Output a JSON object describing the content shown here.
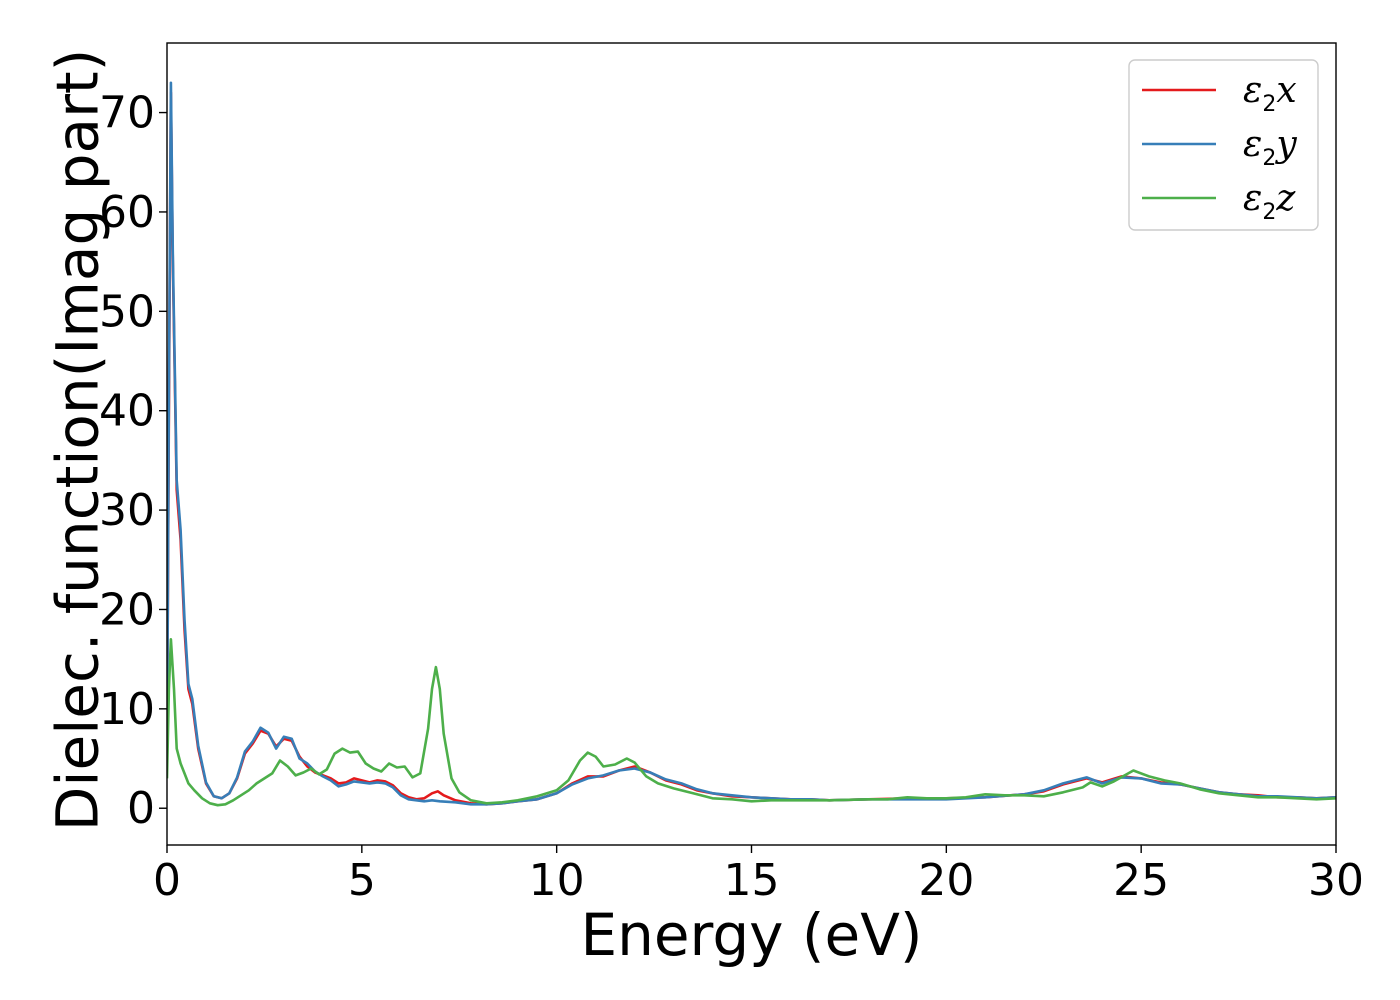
{
  "chart_data": {
    "type": "line",
    "title": "",
    "xlabel": "Energy (eV)",
    "ylabel": "Dielec. function(Imag part)",
    "xlim": [
      0,
      30
    ],
    "ylim": [
      -3.7,
      77
    ],
    "xticks": [
      0,
      5,
      10,
      15,
      20,
      25,
      30
    ],
    "yticks": [
      0,
      10,
      20,
      30,
      40,
      50,
      60,
      70
    ],
    "grid": false,
    "legend_position": "top-right",
    "series": [
      {
        "name": "ε2x",
        "base": "ε",
        "sub": "2",
        "suffix": "x",
        "color": "#e41a1c",
        "points": [
          [
            0.0,
            5
          ],
          [
            0.05,
            40
          ],
          [
            0.1,
            72
          ],
          [
            0.15,
            55
          ],
          [
            0.25,
            32
          ],
          [
            0.35,
            27
          ],
          [
            0.45,
            18
          ],
          [
            0.55,
            12
          ],
          [
            0.65,
            10.5
          ],
          [
            0.8,
            6
          ],
          [
            1.0,
            2.5
          ],
          [
            1.2,
            1.2
          ],
          [
            1.4,
            1.0
          ],
          [
            1.6,
            1.5
          ],
          [
            1.8,
            3.0
          ],
          [
            2.0,
            5.5
          ],
          [
            2.2,
            6.5
          ],
          [
            2.4,
            7.8
          ],
          [
            2.6,
            7.5
          ],
          [
            2.8,
            6.2
          ],
          [
            3.0,
            7.0
          ],
          [
            3.2,
            6.8
          ],
          [
            3.4,
            5.2
          ],
          [
            3.6,
            4.2
          ],
          [
            3.8,
            3.6
          ],
          [
            4.0,
            3.3
          ],
          [
            4.2,
            3.0
          ],
          [
            4.4,
            2.5
          ],
          [
            4.6,
            2.6
          ],
          [
            4.8,
            3.0
          ],
          [
            5.0,
            2.8
          ],
          [
            5.2,
            2.6
          ],
          [
            5.4,
            2.8
          ],
          [
            5.6,
            2.7
          ],
          [
            5.8,
            2.3
          ],
          [
            6.0,
            1.5
          ],
          [
            6.2,
            1.1
          ],
          [
            6.4,
            0.9
          ],
          [
            6.6,
            1.0
          ],
          [
            6.8,
            1.5
          ],
          [
            6.95,
            1.7
          ],
          [
            7.1,
            1.3
          ],
          [
            7.4,
            0.8
          ],
          [
            7.8,
            0.5
          ],
          [
            8.2,
            0.4
          ],
          [
            8.6,
            0.5
          ],
          [
            9.0,
            0.7
          ],
          [
            9.5,
            0.9
          ],
          [
            10.0,
            1.5
          ],
          [
            10.4,
            2.5
          ],
          [
            10.8,
            3.2
          ],
          [
            11.2,
            3.2
          ],
          [
            11.6,
            3.8
          ],
          [
            12.0,
            4.2
          ],
          [
            12.4,
            3.6
          ],
          [
            12.8,
            2.8
          ],
          [
            13.2,
            2.4
          ],
          [
            13.6,
            1.8
          ],
          [
            14.0,
            1.5
          ],
          [
            14.5,
            1.2
          ],
          [
            15.0,
            1.1
          ],
          [
            15.5,
            1.0
          ],
          [
            16.0,
            0.9
          ],
          [
            16.5,
            0.9
          ],
          [
            17.0,
            0.8
          ],
          [
            18.0,
            0.9
          ],
          [
            19.0,
            1.0
          ],
          [
            20.0,
            1.0
          ],
          [
            21.0,
            1.1
          ],
          [
            22.0,
            1.4
          ],
          [
            22.5,
            1.7
          ],
          [
            23.0,
            2.4
          ],
          [
            23.6,
            3.0
          ],
          [
            24.0,
            2.6
          ],
          [
            24.5,
            3.2
          ],
          [
            25.0,
            3.0
          ],
          [
            25.5,
            2.6
          ],
          [
            26.0,
            2.4
          ],
          [
            26.5,
            2.0
          ],
          [
            27.0,
            1.6
          ],
          [
            27.5,
            1.4
          ],
          [
            28.0,
            1.3
          ],
          [
            28.5,
            1.1
          ],
          [
            29.0,
            1.1
          ],
          [
            29.5,
            1.0
          ],
          [
            30.0,
            1.1
          ]
        ]
      },
      {
        "name": "ε2y",
        "base": "ε",
        "sub": "2",
        "suffix": "y",
        "color": "#377eb8",
        "points": [
          [
            0.0,
            5
          ],
          [
            0.05,
            42
          ],
          [
            0.1,
            73
          ],
          [
            0.15,
            56
          ],
          [
            0.25,
            33
          ],
          [
            0.35,
            28
          ],
          [
            0.45,
            19
          ],
          [
            0.55,
            12.5
          ],
          [
            0.65,
            11
          ],
          [
            0.8,
            6.3
          ],
          [
            1.0,
            2.6
          ],
          [
            1.2,
            1.2
          ],
          [
            1.4,
            1.0
          ],
          [
            1.6,
            1.5
          ],
          [
            1.8,
            3.1
          ],
          [
            2.0,
            5.7
          ],
          [
            2.2,
            6.7
          ],
          [
            2.4,
            8.1
          ],
          [
            2.6,
            7.6
          ],
          [
            2.8,
            6.0
          ],
          [
            3.0,
            7.2
          ],
          [
            3.2,
            7.0
          ],
          [
            3.4,
            5.0
          ],
          [
            3.6,
            4.5
          ],
          [
            3.8,
            3.7
          ],
          [
            4.0,
            3.2
          ],
          [
            4.2,
            2.8
          ],
          [
            4.4,
            2.2
          ],
          [
            4.6,
            2.4
          ],
          [
            4.8,
            2.7
          ],
          [
            5.0,
            2.6
          ],
          [
            5.2,
            2.5
          ],
          [
            5.4,
            2.6
          ],
          [
            5.6,
            2.5
          ],
          [
            5.8,
            2.1
          ],
          [
            6.0,
            1.3
          ],
          [
            6.2,
            0.9
          ],
          [
            6.4,
            0.8
          ],
          [
            6.6,
            0.7
          ],
          [
            6.8,
            0.8
          ],
          [
            7.0,
            0.7
          ],
          [
            7.4,
            0.6
          ],
          [
            7.8,
            0.4
          ],
          [
            8.2,
            0.4
          ],
          [
            8.6,
            0.5
          ],
          [
            9.0,
            0.7
          ],
          [
            9.5,
            0.9
          ],
          [
            10.0,
            1.5
          ],
          [
            10.4,
            2.4
          ],
          [
            10.8,
            3.0
          ],
          [
            11.2,
            3.3
          ],
          [
            11.6,
            3.8
          ],
          [
            12.0,
            4.0
          ],
          [
            12.4,
            3.6
          ],
          [
            12.8,
            2.9
          ],
          [
            13.2,
            2.5
          ],
          [
            13.6,
            1.9
          ],
          [
            14.0,
            1.5
          ],
          [
            14.5,
            1.3
          ],
          [
            15.0,
            1.1
          ],
          [
            15.5,
            1.0
          ],
          [
            16.0,
            0.9
          ],
          [
            16.5,
            0.9
          ],
          [
            17.0,
            0.8
          ],
          [
            18.0,
            0.9
          ],
          [
            19.0,
            0.9
          ],
          [
            20.0,
            0.9
          ],
          [
            21.0,
            1.1
          ],
          [
            22.0,
            1.4
          ],
          [
            22.5,
            1.8
          ],
          [
            23.0,
            2.5
          ],
          [
            23.6,
            3.1
          ],
          [
            24.0,
            2.5
          ],
          [
            24.5,
            3.1
          ],
          [
            25.0,
            3.0
          ],
          [
            25.5,
            2.5
          ],
          [
            26.0,
            2.4
          ],
          [
            26.5,
            2.0
          ],
          [
            27.0,
            1.6
          ],
          [
            27.5,
            1.4
          ],
          [
            28.0,
            1.2
          ],
          [
            28.5,
            1.2
          ],
          [
            29.0,
            1.1
          ],
          [
            29.5,
            1.0
          ],
          [
            30.0,
            1.1
          ]
        ]
      },
      {
        "name": "ε2z",
        "base": "ε",
        "sub": "2",
        "suffix": "z",
        "color": "#4daf4a",
        "points": [
          [
            0.0,
            3
          ],
          [
            0.05,
            12
          ],
          [
            0.1,
            17
          ],
          [
            0.18,
            12
          ],
          [
            0.25,
            6
          ],
          [
            0.35,
            4.5
          ],
          [
            0.45,
            3.5
          ],
          [
            0.55,
            2.5
          ],
          [
            0.7,
            1.8
          ],
          [
            0.9,
            1.0
          ],
          [
            1.1,
            0.5
          ],
          [
            1.3,
            0.3
          ],
          [
            1.5,
            0.4
          ],
          [
            1.7,
            0.8
          ],
          [
            1.9,
            1.3
          ],
          [
            2.1,
            1.8
          ],
          [
            2.3,
            2.5
          ],
          [
            2.5,
            3.0
          ],
          [
            2.7,
            3.5
          ],
          [
            2.9,
            4.8
          ],
          [
            3.1,
            4.2
          ],
          [
            3.3,
            3.3
          ],
          [
            3.5,
            3.6
          ],
          [
            3.7,
            4.0
          ],
          [
            3.9,
            3.4
          ],
          [
            4.1,
            3.9
          ],
          [
            4.3,
            5.5
          ],
          [
            4.5,
            6.0
          ],
          [
            4.7,
            5.6
          ],
          [
            4.9,
            5.7
          ],
          [
            5.1,
            4.5
          ],
          [
            5.3,
            4.0
          ],
          [
            5.5,
            3.7
          ],
          [
            5.7,
            4.5
          ],
          [
            5.9,
            4.1
          ],
          [
            6.1,
            4.2
          ],
          [
            6.3,
            3.1
          ],
          [
            6.5,
            3.5
          ],
          [
            6.7,
            8
          ],
          [
            6.8,
            12
          ],
          [
            6.9,
            14.2
          ],
          [
            7.0,
            12
          ],
          [
            7.1,
            7.5
          ],
          [
            7.3,
            3
          ],
          [
            7.5,
            1.6
          ],
          [
            7.8,
            0.8
          ],
          [
            8.2,
            0.5
          ],
          [
            8.6,
            0.6
          ],
          [
            9.0,
            0.8
          ],
          [
            9.5,
            1.2
          ],
          [
            10.0,
            1.8
          ],
          [
            10.3,
            2.8
          ],
          [
            10.6,
            4.8
          ],
          [
            10.8,
            5.6
          ],
          [
            11.0,
            5.2
          ],
          [
            11.2,
            4.2
          ],
          [
            11.5,
            4.4
          ],
          [
            11.8,
            5.0
          ],
          [
            12.0,
            4.6
          ],
          [
            12.3,
            3.2
          ],
          [
            12.6,
            2.5
          ],
          [
            13.0,
            2.0
          ],
          [
            13.5,
            1.5
          ],
          [
            14.0,
            1.0
          ],
          [
            14.5,
            0.9
          ],
          [
            15.0,
            0.7
          ],
          [
            15.5,
            0.8
          ],
          [
            16.0,
            0.8
          ],
          [
            16.5,
            0.8
          ],
          [
            17.0,
            0.8
          ],
          [
            18.0,
            0.9
          ],
          [
            18.5,
            0.9
          ],
          [
            19.0,
            1.1
          ],
          [
            19.5,
            1.0
          ],
          [
            20.0,
            1.0
          ],
          [
            20.5,
            1.1
          ],
          [
            21.0,
            1.4
          ],
          [
            21.5,
            1.3
          ],
          [
            22.0,
            1.3
          ],
          [
            22.5,
            1.2
          ],
          [
            23.0,
            1.6
          ],
          [
            23.5,
            2.1
          ],
          [
            23.7,
            2.6
          ],
          [
            24.0,
            2.2
          ],
          [
            24.3,
            2.7
          ],
          [
            24.8,
            3.8
          ],
          [
            25.2,
            3.2
          ],
          [
            25.6,
            2.8
          ],
          [
            26.0,
            2.5
          ],
          [
            26.5,
            1.9
          ],
          [
            27.0,
            1.5
          ],
          [
            27.5,
            1.3
          ],
          [
            28.0,
            1.1
          ],
          [
            28.5,
            1.1
          ],
          [
            29.0,
            1.0
          ],
          [
            29.5,
            0.9
          ],
          [
            30.0,
            1.0
          ]
        ]
      }
    ]
  }
}
